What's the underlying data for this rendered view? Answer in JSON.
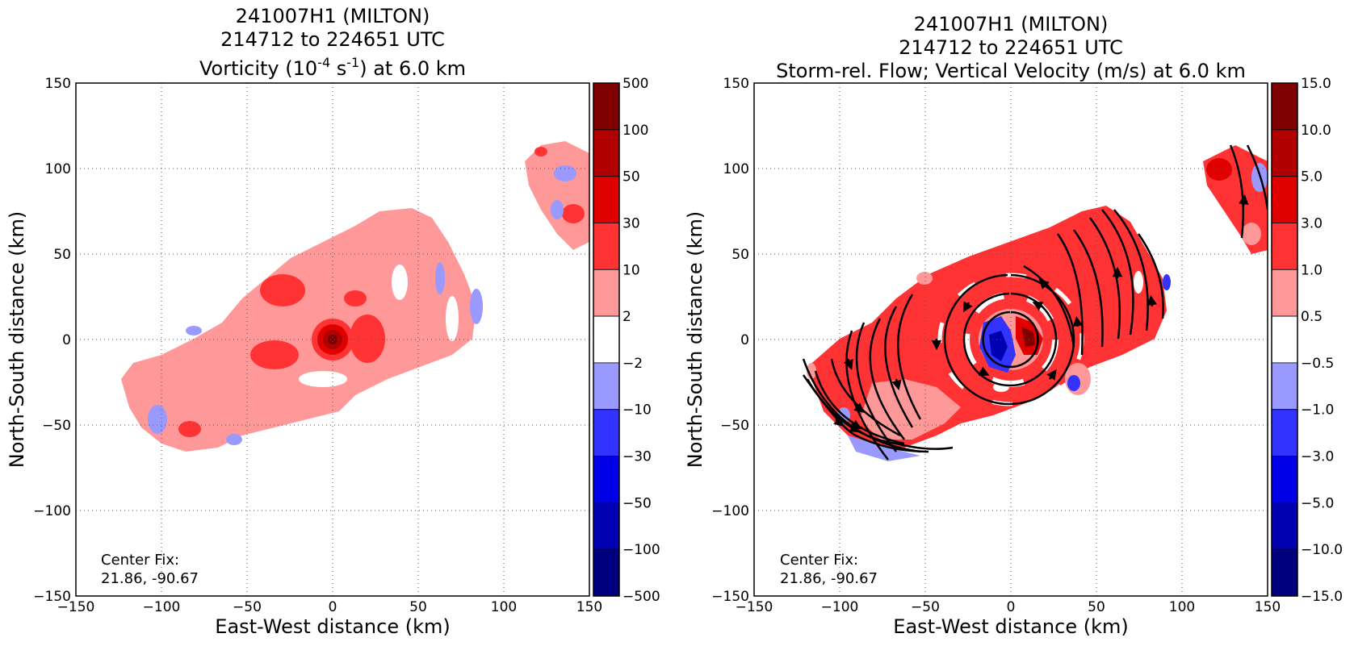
{
  "chart_data": [
    {
      "type": "heatmap",
      "title": [
        "241007H1 (MILTON)",
        "214712 to 224651 UTC",
        "Vorticity (10",
        "-4",
        " s",
        "-1",
        ") at 6.0 km"
      ],
      "xlabel": "East-West distance (km)",
      "ylabel": "North-South distance (km)",
      "xlim": [
        -150,
        150
      ],
      "ylim": [
        -150,
        150
      ],
      "xticks": [
        "−150",
        "−100",
        "−50",
        "0",
        "50",
        "100",
        "150"
      ],
      "yticks": [
        "−150",
        "−100",
        "−50",
        "0",
        "50",
        "100",
        "150"
      ],
      "grid": true,
      "annotation": [
        "Center Fix:",
        "21.86, -90.67"
      ],
      "colorbar": {
        "ticks": [
          "500",
          "100",
          "50",
          "30",
          "10",
          "2",
          "−2",
          "−10",
          "−30",
          "−50",
          "−100",
          "−500"
        ],
        "colors": [
          "#7f0000",
          "#b00000",
          "#e00000",
          "#ff3333",
          "#ff9999",
          "#ffffff",
          "#9999ff",
          "#3333ff",
          "#0000e6",
          "#0000b0",
          "#00007f"
        ]
      }
    },
    {
      "type": "heatmap",
      "title": [
        "241007H1 (MILTON)",
        "214712 to 224651 UTC",
        "Storm-rel. Flow; Vertical Velocity (m/s) at 6.0 km"
      ],
      "xlabel": "East-West distance (km)",
      "ylabel": "North-South distance (km)",
      "xlim": [
        -150,
        150
      ],
      "ylim": [
        -150,
        150
      ],
      "xticks": [
        "−150",
        "−100",
        "−50",
        "0",
        "50",
        "100",
        "150"
      ],
      "yticks": [
        "−150",
        "−100",
        "−50",
        "0",
        "50",
        "100",
        "150"
      ],
      "grid": true,
      "annotation": [
        "Center Fix:",
        "21.86, -90.67"
      ],
      "colorbar": {
        "ticks": [
          "15.0",
          "10.0",
          "5.0",
          "3.0",
          "1.0",
          "0.5",
          "−0.5",
          "−1.0",
          "−3.0",
          "−5.0",
          "−10.0",
          "−15.0"
        ],
        "colors": [
          "#7f0000",
          "#b00000",
          "#e00000",
          "#ff3333",
          "#ff9999",
          "#ffffff",
          "#9999ff",
          "#3333ff",
          "#0000e6",
          "#0000b0",
          "#00007f"
        ]
      }
    }
  ]
}
